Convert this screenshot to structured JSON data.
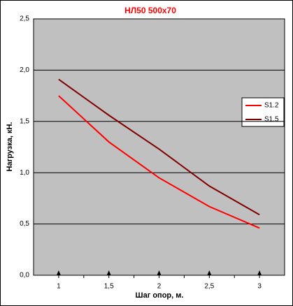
{
  "chart_data": {
    "type": "line",
    "title": "НЛ50 500х70",
    "x_label": "Шаг опор, м.",
    "y_label": "Нагрузка, кН.",
    "x": [
      1,
      1.5,
      2,
      2.5,
      3
    ],
    "series": [
      {
        "name": "S1.2",
        "color": "#ff0000",
        "values": [
          1.75,
          1.3,
          0.95,
          0.67,
          0.46
        ]
      },
      {
        "name": "S1.5",
        "color": "#800000",
        "values": [
          1.91,
          1.56,
          1.23,
          0.87,
          0.59
        ]
      }
    ],
    "xlim": [
      0.75,
      3.25
    ],
    "xticks": [
      1,
      {
        "value": 1.5,
        "label": "1,5"
      },
      2,
      {
        "value": 2.5,
        "label": "2,5"
      },
      3
    ],
    "ylim": [
      0,
      2.5
    ],
    "yticks": [
      {
        "value": 0,
        "label": "0,0"
      },
      {
        "value": 0.5,
        "label": "0,5"
      },
      {
        "value": 1,
        "label": "1,0"
      },
      {
        "value": 1.5,
        "label": "1,5"
      },
      {
        "value": 2,
        "label": "2,0"
      },
      {
        "value": 2.5,
        "label": "2,5"
      }
    ],
    "grid": true
  }
}
